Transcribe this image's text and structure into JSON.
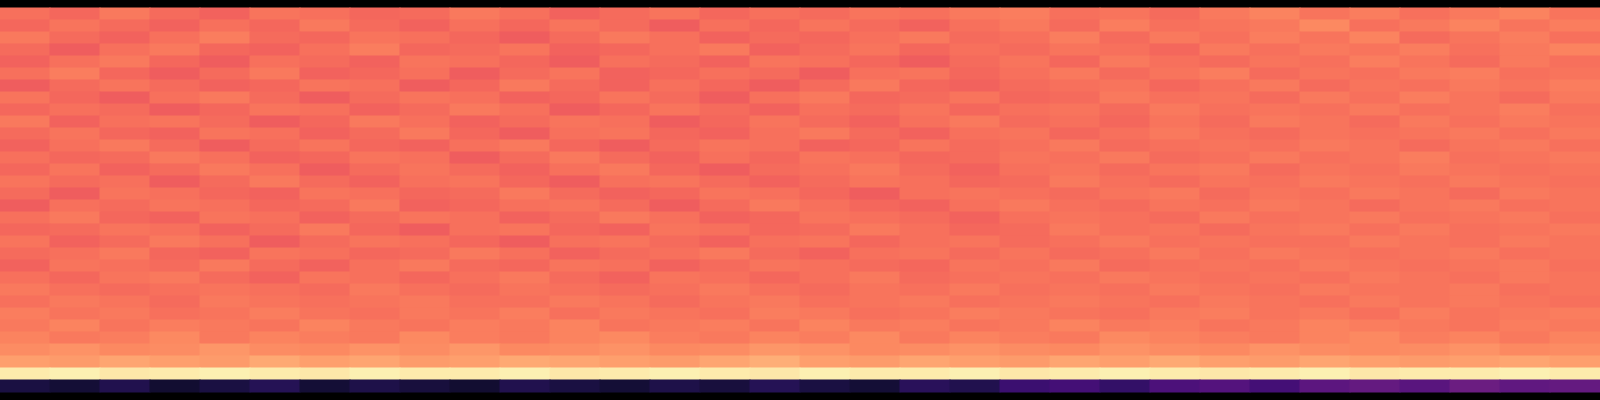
{
  "chart_data": {
    "type": "heatmap",
    "color": "magma",
    "tick_labels": false,
    "color_range": [
      0,
      1
    ],
    "cells": [
      [
        0.7,
        0.68,
        0.72,
        0.69,
        0.67,
        0.71,
        0.7,
        0.68,
        0.69,
        0.72,
        0.7,
        0.67,
        0.69,
        0.71,
        0.68,
        0.7,
        0.69,
        0.71,
        0.7,
        0.72,
        0.73,
        0.7,
        0.71,
        0.69,
        0.72,
        0.74,
        0.71,
        0.73,
        0.7,
        0.72,
        0.74,
        0.71
      ],
      [
        0.68,
        0.71,
        0.69,
        0.67,
        0.7,
        0.68,
        0.72,
        0.69,
        0.67,
        0.7,
        0.68,
        0.71,
        0.69,
        0.66,
        0.7,
        0.68,
        0.71,
        0.69,
        0.67,
        0.7,
        0.72,
        0.69,
        0.73,
        0.7,
        0.71,
        0.72,
        0.75,
        0.7,
        0.72,
        0.74,
        0.71,
        0.73
      ],
      [
        0.72,
        0.69,
        0.67,
        0.7,
        0.73,
        0.69,
        0.68,
        0.71,
        0.7,
        0.68,
        0.66,
        0.69,
        0.72,
        0.7,
        0.67,
        0.69,
        0.68,
        0.7,
        0.72,
        0.69,
        0.7,
        0.73,
        0.69,
        0.72,
        0.7,
        0.73,
        0.71,
        0.74,
        0.69,
        0.71,
        0.73,
        0.7
      ],
      [
        0.69,
        0.66,
        0.7,
        0.72,
        0.68,
        0.67,
        0.7,
        0.73,
        0.68,
        0.69,
        0.71,
        0.67,
        0.68,
        0.7,
        0.72,
        0.67,
        0.69,
        0.71,
        0.68,
        0.7,
        0.69,
        0.71,
        0.7,
        0.68,
        0.72,
        0.7,
        0.72,
        0.71,
        0.73,
        0.7,
        0.72,
        0.74
      ],
      [
        0.67,
        0.7,
        0.72,
        0.68,
        0.66,
        0.7,
        0.69,
        0.67,
        0.71,
        0.7,
        0.68,
        0.66,
        0.7,
        0.69,
        0.67,
        0.71,
        0.7,
        0.68,
        0.66,
        0.69,
        0.71,
        0.68,
        0.72,
        0.7,
        0.69,
        0.71,
        0.7,
        0.73,
        0.71,
        0.69,
        0.72,
        0.7
      ],
      [
        0.7,
        0.73,
        0.68,
        0.66,
        0.69,
        0.72,
        0.67,
        0.68,
        0.7,
        0.66,
        0.69,
        0.71,
        0.67,
        0.68,
        0.7,
        0.69,
        0.66,
        0.7,
        0.71,
        0.68,
        0.7,
        0.72,
        0.69,
        0.71,
        0.73,
        0.69,
        0.71,
        0.7,
        0.72,
        0.73,
        0.7,
        0.71
      ],
      [
        0.66,
        0.69,
        0.71,
        0.69,
        0.67,
        0.68,
        0.71,
        0.7,
        0.66,
        0.68,
        0.72,
        0.69,
        0.67,
        0.7,
        0.68,
        0.66,
        0.69,
        0.72,
        0.68,
        0.67,
        0.69,
        0.7,
        0.71,
        0.68,
        0.7,
        0.72,
        0.69,
        0.71,
        0.7,
        0.72,
        0.71,
        0.73
      ],
      [
        0.71,
        0.68,
        0.66,
        0.7,
        0.72,
        0.69,
        0.66,
        0.69,
        0.71,
        0.7,
        0.67,
        0.68,
        0.71,
        0.69,
        0.66,
        0.7,
        0.72,
        0.68,
        0.69,
        0.71,
        0.68,
        0.69,
        0.72,
        0.7,
        0.71,
        0.69,
        0.72,
        0.7,
        0.73,
        0.71,
        0.69,
        0.72
      ],
      [
        0.68,
        0.7,
        0.69,
        0.66,
        0.68,
        0.71,
        0.7,
        0.67,
        0.69,
        0.72,
        0.7,
        0.66,
        0.68,
        0.71,
        0.69,
        0.67,
        0.7,
        0.69,
        0.71,
        0.68,
        0.7,
        0.71,
        0.69,
        0.72,
        0.7,
        0.71,
        0.7,
        0.72,
        0.7,
        0.71,
        0.73,
        0.7
      ],
      [
        0.72,
        0.67,
        0.7,
        0.71,
        0.69,
        0.66,
        0.68,
        0.72,
        0.7,
        0.67,
        0.69,
        0.71,
        0.7,
        0.66,
        0.68,
        0.71,
        0.69,
        0.67,
        0.7,
        0.72,
        0.69,
        0.7,
        0.68,
        0.71,
        0.69,
        0.72,
        0.71,
        0.69,
        0.72,
        0.7,
        0.72,
        0.71
      ],
      [
        0.69,
        0.71,
        0.68,
        0.67,
        0.71,
        0.7,
        0.67,
        0.69,
        0.72,
        0.68,
        0.66,
        0.7,
        0.71,
        0.68,
        0.67,
        0.7,
        0.72,
        0.69,
        0.67,
        0.7,
        0.71,
        0.68,
        0.7,
        0.72,
        0.7,
        0.69,
        0.71,
        0.7,
        0.71,
        0.72,
        0.7,
        0.72
      ],
      [
        0.67,
        0.7,
        0.72,
        0.69,
        0.66,
        0.69,
        0.71,
        0.68,
        0.67,
        0.7,
        0.72,
        0.68,
        0.66,
        0.69,
        0.71,
        0.7,
        0.67,
        0.68,
        0.71,
        0.69,
        0.7,
        0.72,
        0.69,
        0.7,
        0.71,
        0.7,
        0.72,
        0.71,
        0.69,
        0.71,
        0.72,
        0.7
      ],
      [
        0.7,
        0.68,
        0.69,
        0.72,
        0.7,
        0.67,
        0.68,
        0.71,
        0.7,
        0.66,
        0.69,
        0.72,
        0.69,
        0.67,
        0.7,
        0.68,
        0.71,
        0.7,
        0.68,
        0.69,
        0.71,
        0.7,
        0.72,
        0.69,
        0.7,
        0.72,
        0.7,
        0.71,
        0.73,
        0.7,
        0.71,
        0.72
      ],
      [
        0.68,
        0.71,
        0.67,
        0.69,
        0.72,
        0.7,
        0.66,
        0.69,
        0.71,
        0.69,
        0.67,
        0.7,
        0.72,
        0.68,
        0.66,
        0.69,
        0.7,
        0.72,
        0.69,
        0.67,
        0.7,
        0.71,
        0.69,
        0.71,
        0.72,
        0.69,
        0.71,
        0.7,
        0.72,
        0.71,
        0.7,
        0.71
      ],
      [
        0.71,
        0.69,
        0.7,
        0.66,
        0.69,
        0.72,
        0.69,
        0.67,
        0.7,
        0.71,
        0.68,
        0.66,
        0.7,
        0.71,
        0.69,
        0.67,
        0.69,
        0.71,
        0.7,
        0.68,
        0.69,
        0.72,
        0.7,
        0.69,
        0.71,
        0.7,
        0.72,
        0.71,
        0.7,
        0.72,
        0.71,
        0.7
      ],
      [
        0.69,
        0.66,
        0.71,
        0.7,
        0.68,
        0.67,
        0.71,
        0.7,
        0.68,
        0.69,
        0.72,
        0.69,
        0.67,
        0.68,
        0.71,
        0.7,
        0.68,
        0.66,
        0.7,
        0.71,
        0.7,
        0.69,
        0.71,
        0.72,
        0.69,
        0.71,
        0.7,
        0.72,
        0.71,
        0.69,
        0.72,
        0.71
      ],
      [
        0.66,
        0.7,
        0.69,
        0.71,
        0.7,
        0.68,
        0.69,
        0.72,
        0.67,
        0.68,
        0.7,
        0.71,
        0.69,
        0.66,
        0.69,
        0.72,
        0.7,
        0.68,
        0.67,
        0.7,
        0.72,
        0.7,
        0.69,
        0.71,
        0.7,
        0.72,
        0.71,
        0.69,
        0.71,
        0.72,
        0.7,
        0.71
      ],
      [
        0.7,
        0.72,
        0.68,
        0.67,
        0.71,
        0.7,
        0.67,
        0.69,
        0.71,
        0.7,
        0.67,
        0.69,
        0.72,
        0.7,
        0.67,
        0.68,
        0.71,
        0.7,
        0.69,
        0.67,
        0.7,
        0.71,
        0.7,
        0.69,
        0.72,
        0.7,
        0.71,
        0.72,
        0.7,
        0.71,
        0.72,
        0.7
      ],
      [
        0.68,
        0.69,
        0.71,
        0.7,
        0.67,
        0.69,
        0.72,
        0.68,
        0.66,
        0.7,
        0.71,
        0.68,
        0.67,
        0.71,
        0.7,
        0.68,
        0.69,
        0.72,
        0.7,
        0.68,
        0.69,
        0.72,
        0.7,
        0.71,
        0.69,
        0.71,
        0.72,
        0.7,
        0.72,
        0.7,
        0.71,
        0.72
      ],
      [
        0.71,
        0.67,
        0.69,
        0.72,
        0.7,
        0.66,
        0.69,
        0.71,
        0.7,
        0.68,
        0.66,
        0.7,
        0.71,
        0.69,
        0.67,
        0.7,
        0.71,
        0.68,
        0.7,
        0.71,
        0.69,
        0.7,
        0.72,
        0.7,
        0.71,
        0.7,
        0.7,
        0.72,
        0.71,
        0.7,
        0.72,
        0.71
      ],
      [
        0.69,
        0.7,
        0.72,
        0.68,
        0.67,
        0.71,
        0.7,
        0.68,
        0.69,
        0.72,
        0.7,
        0.67,
        0.69,
        0.7,
        0.72,
        0.69,
        0.67,
        0.7,
        0.71,
        0.69,
        0.71,
        0.69,
        0.7,
        0.72,
        0.7,
        0.72,
        0.71,
        0.7,
        0.71,
        0.72,
        0.7,
        0.71
      ],
      [
        0.67,
        0.71,
        0.7,
        0.69,
        0.72,
        0.69,
        0.67,
        0.7,
        0.72,
        0.69,
        0.68,
        0.71,
        0.7,
        0.67,
        0.69,
        0.71,
        0.7,
        0.69,
        0.68,
        0.71,
        0.7,
        0.72,
        0.69,
        0.7,
        0.71,
        0.7,
        0.72,
        0.71,
        0.7,
        0.71,
        0.72,
        0.7
      ],
      [
        0.7,
        0.68,
        0.71,
        0.72,
        0.69,
        0.67,
        0.71,
        0.7,
        0.68,
        0.7,
        0.72,
        0.69,
        0.67,
        0.71,
        0.7,
        0.68,
        0.7,
        0.72,
        0.69,
        0.7,
        0.71,
        0.7,
        0.72,
        0.71,
        0.7,
        0.71,
        0.7,
        0.72,
        0.71,
        0.7,
        0.72,
        0.71
      ],
      [
        0.72,
        0.7,
        0.69,
        0.7,
        0.71,
        0.7,
        0.69,
        0.72,
        0.7,
        0.69,
        0.71,
        0.7,
        0.69,
        0.7,
        0.72,
        0.7,
        0.69,
        0.71,
        0.7,
        0.72,
        0.7,
        0.71,
        0.7,
        0.72,
        0.71,
        0.7,
        0.72,
        0.71,
        0.71,
        0.72,
        0.7,
        0.71
      ],
      [
        0.7,
        0.72,
        0.71,
        0.69,
        0.72,
        0.71,
        0.7,
        0.71,
        0.72,
        0.7,
        0.7,
        0.72,
        0.71,
        0.69,
        0.71,
        0.72,
        0.7,
        0.71,
        0.72,
        0.7,
        0.71,
        0.72,
        0.71,
        0.7,
        0.72,
        0.71,
        0.7,
        0.72,
        0.71,
        0.72,
        0.71,
        0.7
      ],
      [
        0.73,
        0.71,
        0.72,
        0.7,
        0.71,
        0.73,
        0.71,
        0.7,
        0.72,
        0.71,
        0.73,
        0.7,
        0.72,
        0.71,
        0.7,
        0.73,
        0.72,
        0.7,
        0.71,
        0.73,
        0.72,
        0.71,
        0.7,
        0.72,
        0.73,
        0.71,
        0.72,
        0.7,
        0.73,
        0.71,
        0.72,
        0.73
      ],
      [
        0.72,
        0.74,
        0.71,
        0.73,
        0.72,
        0.71,
        0.74,
        0.72,
        0.71,
        0.73,
        0.72,
        0.74,
        0.71,
        0.72,
        0.73,
        0.71,
        0.74,
        0.72,
        0.73,
        0.71,
        0.72,
        0.74,
        0.72,
        0.73,
        0.71,
        0.72,
        0.74,
        0.73,
        0.72,
        0.71,
        0.73,
        0.72
      ],
      [
        0.74,
        0.72,
        0.73,
        0.75,
        0.72,
        0.74,
        0.73,
        0.72,
        0.75,
        0.73,
        0.72,
        0.74,
        0.75,
        0.73,
        0.72,
        0.74,
        0.73,
        0.75,
        0.72,
        0.74,
        0.73,
        0.72,
        0.75,
        0.74,
        0.73,
        0.72,
        0.74,
        0.75,
        0.73,
        0.74,
        0.72,
        0.74
      ],
      [
        0.76,
        0.77,
        0.75,
        0.76,
        0.78,
        0.76,
        0.75,
        0.77,
        0.76,
        0.78,
        0.75,
        0.76,
        0.77,
        0.75,
        0.76,
        0.78,
        0.77,
        0.75,
        0.76,
        0.77,
        0.76,
        0.75,
        0.77,
        0.76,
        0.75,
        0.77,
        0.76,
        0.75,
        0.76,
        0.77,
        0.75,
        0.76
      ],
      [
        0.8,
        0.79,
        0.81,
        0.8,
        0.79,
        0.82,
        0.8,
        0.81,
        0.79,
        0.8,
        0.82,
        0.81,
        0.8,
        0.79,
        0.81,
        0.83,
        0.8,
        0.79,
        0.81,
        0.8,
        0.79,
        0.81,
        0.8,
        0.82,
        0.8,
        0.79,
        0.81,
        0.8,
        0.79,
        0.8,
        0.81,
        0.8
      ],
      [
        0.96,
        0.97,
        0.95,
        0.96,
        0.97,
        0.96,
        0.95,
        0.97,
        0.96,
        0.96,
        0.97,
        0.95,
        0.96,
        0.97,
        0.96,
        0.95,
        0.97,
        0.96,
        0.96,
        0.97,
        0.95,
        0.96,
        0.97,
        0.96,
        0.95,
        0.96,
        0.97,
        0.95,
        0.96,
        0.96,
        0.97,
        0.96
      ],
      [
        0.12,
        0.1,
        0.14,
        0.09,
        0.12,
        0.15,
        0.1,
        0.13,
        0.11,
        0.09,
        0.14,
        0.12,
        0.1,
        0.13,
        0.11,
        0.15,
        0.12,
        0.1,
        0.16,
        0.14,
        0.2,
        0.22,
        0.18,
        0.24,
        0.26,
        0.22,
        0.28,
        0.3,
        0.27,
        0.32,
        0.29,
        0.3
      ]
    ]
  }
}
